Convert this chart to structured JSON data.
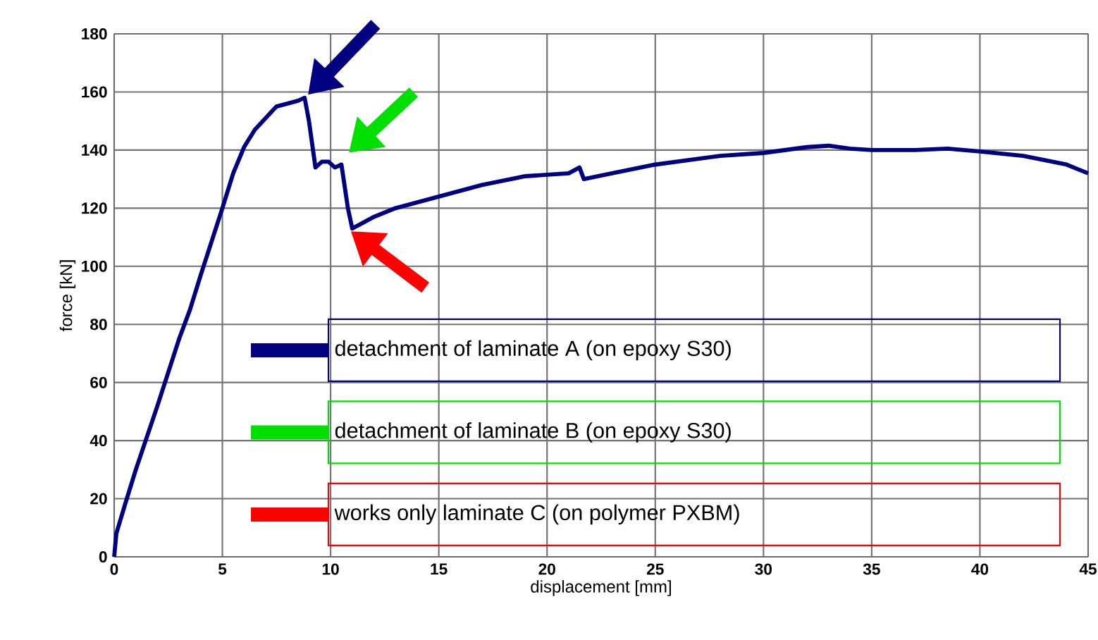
{
  "chart_data": {
    "type": "line",
    "xlabel": "displacement [mm]",
    "ylabel": "force [kN]",
    "xlim": [
      0,
      45
    ],
    "xticks": [
      0,
      5,
      10,
      15,
      20,
      25,
      30,
      35,
      40,
      45
    ],
    "ylim": [
      0,
      180
    ],
    "yticks": [
      0,
      20,
      40,
      60,
      80,
      100,
      120,
      140,
      160,
      180
    ],
    "grid": true,
    "marker": "none",
    "line_style": "solid",
    "series": [
      {
        "color": "#000080",
        "x": [
          0,
          0.1,
          0.5,
          1,
          2,
          3,
          3.5,
          4,
          5,
          5.5,
          6,
          6.5,
          7,
          7.5,
          8,
          8.5,
          8.8,
          9.0,
          9.3,
          9.6,
          9.9,
          10.2,
          10.5,
          10.8,
          11,
          12,
          13,
          15,
          17,
          19,
          21,
          21.5,
          21.7,
          23,
          25,
          28,
          30,
          32,
          33,
          34,
          35,
          37,
          38.5,
          40,
          42,
          44,
          45
        ],
        "values": [
          0,
          8,
          18,
          30,
          52,
          75,
          85,
          97,
          120,
          132,
          141,
          147,
          151,
          155,
          156,
          157,
          158,
          150,
          134,
          136,
          136,
          134,
          135,
          120,
          113,
          117,
          120,
          124,
          128,
          131,
          132,
          134,
          130,
          132,
          135,
          138,
          139,
          141,
          141.5,
          140.5,
          140,
          140,
          140.5,
          139.5,
          138,
          135,
          132
        ]
      }
    ],
    "annotations": [
      "detachment of laminate A (on epoxy S30)",
      "detachment of laminate B (on epoxy S30)",
      "works only laminate C (on polymer PXBM)"
    ]
  }
}
